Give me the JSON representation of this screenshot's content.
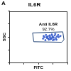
{
  "chart_data": {
    "type": "scatter",
    "panel_label": "A",
    "title": "IL6R",
    "x_label": "FITC",
    "y_label": "SSC",
    "xlim": [
      0,
      100
    ],
    "ylim": [
      0,
      100
    ],
    "xticks": [
      0,
      25,
      50,
      75,
      100
    ],
    "yticks": [
      0,
      25,
      50,
      75,
      100
    ],
    "tick_labels": false,
    "grid": false,
    "color": "#3a5fcd",
    "x": [
      60,
      65,
      70,
      72,
      75,
      68,
      78,
      80,
      63,
      58,
      73,
      82,
      77,
      66,
      70,
      85,
      62,
      74,
      79,
      69,
      71,
      76,
      84,
      67,
      81,
      64,
      73,
      88,
      59,
      75
    ],
    "values": [
      50,
      48,
      52,
      47,
      50,
      45,
      53,
      48,
      54,
      47,
      55,
      51,
      45,
      51,
      49,
      50,
      44,
      52,
      56,
      53,
      46,
      49,
      54,
      47,
      45,
      50,
      48,
      52,
      52,
      44
    ],
    "gate": {
      "name": "Anti IL6R",
      "value": 92.7,
      "value_label": "92.7%",
      "color": "#2a4a7a",
      "x": [
        40,
        92,
        94,
        90,
        42,
        40
      ],
      "y": [
        58,
        60,
        45,
        40,
        41,
        58
      ]
    }
  }
}
